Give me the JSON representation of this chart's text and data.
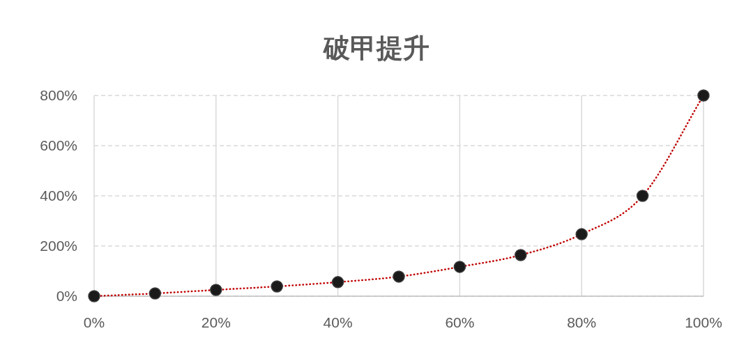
{
  "chart_data": {
    "type": "scatter",
    "title": "破甲提升",
    "x": [
      0,
      10,
      20,
      30,
      40,
      50,
      60,
      70,
      80,
      90,
      100
    ],
    "series": [
      {
        "type": "line",
        "color": "#c00000",
        "line_style": "dotted",
        "marker": "none",
        "values": [
          0,
          11,
          25,
          39,
          56,
          78,
          117,
          164,
          247,
          400,
          800
        ]
      },
      {
        "type": "scatter",
        "color": "#1a1a1a",
        "marker": "circle",
        "values": [
          0,
          11,
          25,
          39,
          56,
          78,
          117,
          164,
          247,
          400,
          800
        ]
      }
    ],
    "xlim": [
      0,
      100
    ],
    "xticks": [
      {
        "value": 0,
        "label": "0%"
      },
      {
        "value": 20,
        "label": "20%"
      },
      {
        "value": 40,
        "label": "40%"
      },
      {
        "value": 60,
        "label": "60%"
      },
      {
        "value": 80,
        "label": "80%"
      },
      {
        "value": 100,
        "label": "100%"
      }
    ],
    "ylim": [
      0,
      800
    ],
    "yticks": [
      {
        "value": 0,
        "label": "0%"
      },
      {
        "value": 200,
        "label": "200%"
      },
      {
        "value": 400,
        "label": "400%"
      },
      {
        "value": 600,
        "label": "600%"
      },
      {
        "value": 800,
        "label": "800%"
      }
    ],
    "grid": true
  }
}
